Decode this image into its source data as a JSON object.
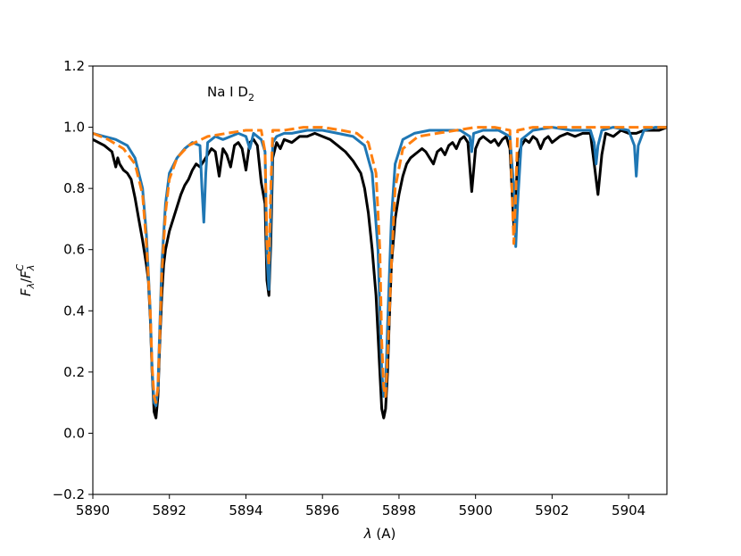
{
  "chart_data": {
    "type": "line",
    "xlabel": "λ (A)",
    "ylabel": "F_λ/F_λ^C",
    "xlim": [
      5890,
      5905
    ],
    "ylim": [
      -0.2,
      1.2
    ],
    "xticks": [
      "5890",
      "5892",
      "5894",
      "5896",
      "5898",
      "5900",
      "5902",
      "5904"
    ],
    "yticks": [
      "−0.2",
      "0.0",
      "0.2",
      "0.4",
      "0.6",
      "0.8",
      "1.0",
      "1.2"
    ],
    "annotation": "Na I D₂",
    "grid": false,
    "legend": "none",
    "series": [
      {
        "color": "#000000",
        "style": "solid",
        "x": [
          5890.0,
          5890.3,
          5890.5,
          5890.6,
          5890.65,
          5890.7,
          5890.8,
          5890.9,
          5891.0,
          5891.1,
          5891.2,
          5891.3,
          5891.4,
          5891.45,
          5891.5,
          5891.55,
          5891.6,
          5891.65,
          5891.7,
          5891.75,
          5891.8,
          5891.85,
          5891.9,
          5892.0,
          5892.1,
          5892.2,
          5892.3,
          5892.4,
          5892.5,
          5892.6,
          5892.7,
          5892.8,
          5892.9,
          5893.0,
          5893.1,
          5893.2,
          5893.3,
          5893.4,
          5893.5,
          5893.6,
          5893.7,
          5893.8,
          5893.9,
          5894.0,
          5894.1,
          5894.2,
          5894.3,
          5894.4,
          5894.5,
          5894.55,
          5894.6,
          5894.65,
          5894.7,
          5894.8,
          5894.9,
          5895.0,
          5895.2,
          5895.4,
          5895.6,
          5895.8,
          5896.0,
          5896.2,
          5896.4,
          5896.6,
          5896.8,
          5897.0,
          5897.1,
          5897.2,
          5897.3,
          5897.4,
          5897.5,
          5897.55,
          5897.6,
          5897.65,
          5897.7,
          5897.75,
          5897.8,
          5897.9,
          5898.0,
          5898.1,
          5898.2,
          5898.3,
          5898.4,
          5898.5,
          5898.6,
          5898.7,
          5898.8,
          5898.9,
          5899.0,
          5899.1,
          5899.2,
          5899.3,
          5899.4,
          5899.5,
          5899.6,
          5899.7,
          5899.8,
          5899.9,
          5900.0,
          5900.1,
          5900.2,
          5900.3,
          5900.4,
          5900.5,
          5900.6,
          5900.7,
          5900.8,
          5900.9,
          5901.0,
          5901.05,
          5901.1,
          5901.2,
          5901.3,
          5901.4,
          5901.5,
          5901.6,
          5901.7,
          5901.8,
          5901.9,
          5902.0,
          5902.2,
          5902.4,
          5902.6,
          5902.8,
          5903.0,
          5903.1,
          5903.2,
          5903.3,
          5903.4,
          5903.6,
          5903.8,
          5904.0,
          5904.2,
          5904.4,
          5904.6,
          5904.8,
          5905.0
        ],
        "y": [
          0.96,
          0.94,
          0.92,
          0.87,
          0.9,
          0.88,
          0.86,
          0.85,
          0.83,
          0.77,
          0.7,
          0.63,
          0.55,
          0.5,
          0.38,
          0.2,
          0.07,
          0.05,
          0.12,
          0.3,
          0.45,
          0.55,
          0.6,
          0.66,
          0.7,
          0.74,
          0.78,
          0.81,
          0.83,
          0.86,
          0.88,
          0.87,
          0.89,
          0.91,
          0.93,
          0.92,
          0.84,
          0.93,
          0.91,
          0.87,
          0.94,
          0.95,
          0.93,
          0.86,
          0.95,
          0.96,
          0.94,
          0.82,
          0.75,
          0.5,
          0.45,
          0.62,
          0.9,
          0.95,
          0.93,
          0.96,
          0.95,
          0.97,
          0.97,
          0.98,
          0.97,
          0.96,
          0.94,
          0.92,
          0.89,
          0.85,
          0.8,
          0.72,
          0.6,
          0.45,
          0.2,
          0.08,
          0.05,
          0.08,
          0.2,
          0.38,
          0.55,
          0.7,
          0.78,
          0.84,
          0.88,
          0.9,
          0.91,
          0.92,
          0.93,
          0.92,
          0.9,
          0.88,
          0.92,
          0.93,
          0.91,
          0.94,
          0.95,
          0.93,
          0.96,
          0.97,
          0.95,
          0.79,
          0.93,
          0.96,
          0.97,
          0.96,
          0.95,
          0.96,
          0.94,
          0.96,
          0.97,
          0.93,
          0.68,
          0.76,
          0.9,
          0.94,
          0.96,
          0.95,
          0.97,
          0.96,
          0.93,
          0.96,
          0.97,
          0.95,
          0.97,
          0.98,
          0.97,
          0.98,
          0.98,
          0.88,
          0.78,
          0.91,
          0.98,
          0.97,
          0.99,
          0.98,
          0.98,
          0.99,
          0.99,
          0.99,
          1.0
        ]
      },
      {
        "color": "#1f77b4",
        "style": "solid",
        "x": [
          5890.0,
          5890.3,
          5890.6,
          5890.9,
          5891.1,
          5891.3,
          5891.4,
          5891.5,
          5891.55,
          5891.6,
          5891.65,
          5891.7,
          5891.75,
          5891.8,
          5891.9,
          5892.0,
          5892.2,
          5892.4,
          5892.6,
          5892.8,
          5892.85,
          5892.9,
          5892.95,
          5893.0,
          5893.2,
          5893.4,
          5893.6,
          5893.8,
          5894.0,
          5894.1,
          5894.2,
          5894.3,
          5894.4,
          5894.5,
          5894.55,
          5894.6,
          5894.65,
          5894.7,
          5894.8,
          5895.0,
          5895.2,
          5895.6,
          5896.0,
          5896.4,
          5896.8,
          5897.1,
          5897.3,
          5897.45,
          5897.55,
          5897.6,
          5897.65,
          5897.7,
          5897.8,
          5897.9,
          5898.1,
          5898.4,
          5898.8,
          5899.2,
          5899.6,
          5899.85,
          5899.9,
          5899.95,
          5900.2,
          5900.6,
          5900.9,
          5901.0,
          5901.05,
          5901.1,
          5901.2,
          5901.5,
          5902.0,
          5902.5,
          5903.0,
          5903.1,
          5903.15,
          5903.2,
          5903.3,
          5903.6,
          5904.0,
          5904.15,
          5904.2,
          5904.25,
          5904.4,
          5904.7,
          5905.0
        ],
        "y": [
          0.98,
          0.97,
          0.96,
          0.94,
          0.9,
          0.8,
          0.65,
          0.4,
          0.2,
          0.1,
          0.09,
          0.15,
          0.35,
          0.55,
          0.75,
          0.85,
          0.9,
          0.93,
          0.95,
          0.94,
          0.8,
          0.69,
          0.85,
          0.95,
          0.97,
          0.96,
          0.97,
          0.98,
          0.97,
          0.93,
          0.98,
          0.97,
          0.96,
          0.92,
          0.58,
          0.47,
          0.7,
          0.95,
          0.97,
          0.98,
          0.98,
          0.99,
          0.99,
          0.98,
          0.97,
          0.94,
          0.85,
          0.6,
          0.2,
          0.12,
          0.15,
          0.35,
          0.7,
          0.88,
          0.96,
          0.98,
          0.99,
          0.99,
          0.99,
          0.97,
          0.92,
          0.98,
          0.99,
          0.99,
          0.97,
          0.8,
          0.61,
          0.75,
          0.96,
          0.99,
          1.0,
          0.99,
          0.99,
          0.95,
          0.88,
          0.94,
          0.99,
          1.0,
          0.99,
          0.94,
          0.84,
          0.94,
          0.99,
          1.0,
          1.0
        ]
      },
      {
        "color": "#ff7f0e",
        "style": "dashed",
        "x": [
          5890.0,
          5890.4,
          5890.8,
          5891.1,
          5891.3,
          5891.4,
          5891.5,
          5891.55,
          5891.6,
          5891.65,
          5891.7,
          5891.75,
          5891.8,
          5891.9,
          5892.0,
          5892.2,
          5892.5,
          5893.0,
          5893.5,
          5894.0,
          5894.4,
          5894.5,
          5894.55,
          5894.6,
          5894.65,
          5894.7,
          5895.0,
          5895.5,
          5896.0,
          5896.5,
          5896.9,
          5897.2,
          5897.4,
          5897.5,
          5897.55,
          5897.6,
          5897.65,
          5897.7,
          5897.8,
          5897.9,
          5898.1,
          5898.5,
          5899.0,
          5899.5,
          5900.0,
          5900.5,
          5900.9,
          5900.95,
          5901.0,
          5901.05,
          5901.1,
          5901.5,
          5902.0,
          5903.0,
          5904.0,
          5905.0
        ],
        "y": [
          0.98,
          0.96,
          0.93,
          0.88,
          0.78,
          0.62,
          0.4,
          0.22,
          0.12,
          0.1,
          0.15,
          0.32,
          0.52,
          0.72,
          0.83,
          0.9,
          0.94,
          0.97,
          0.98,
          0.99,
          0.99,
          0.92,
          0.62,
          0.55,
          0.8,
          0.99,
          0.99,
          1.0,
          1.0,
          0.99,
          0.98,
          0.95,
          0.85,
          0.6,
          0.3,
          0.15,
          0.12,
          0.25,
          0.55,
          0.8,
          0.93,
          0.97,
          0.98,
          0.99,
          1.0,
          1.0,
          0.99,
          0.8,
          0.62,
          0.78,
          0.99,
          1.0,
          1.0,
          1.0,
          1.0,
          1.0
        ]
      }
    ]
  }
}
